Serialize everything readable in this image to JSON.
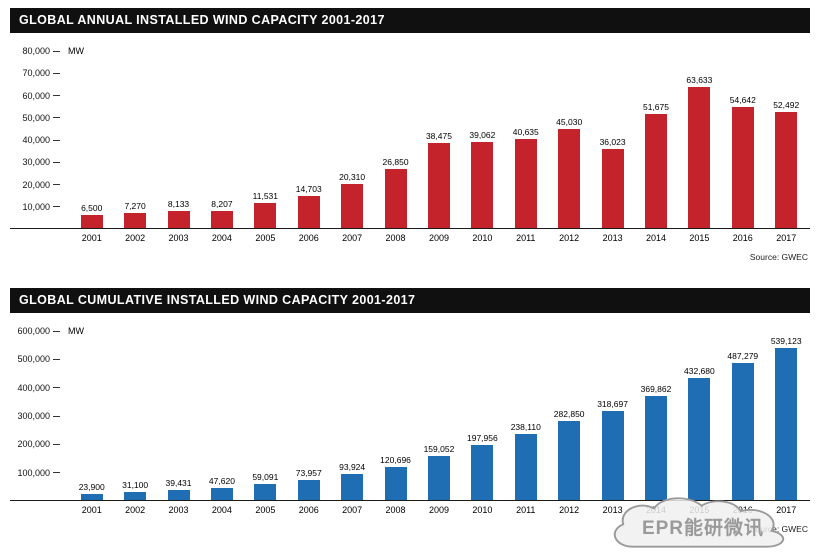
{
  "chart_data": [
    {
      "type": "bar",
      "title": "GLOBAL ANNUAL INSTALLED WIND CAPACITY 2001-2017",
      "ylabel": "MW",
      "source": "Source: GWEC",
      "bar_color": "#c4232b",
      "ylim": [
        0,
        80000
      ],
      "legend": "none",
      "grid": false,
      "yticks": [
        {
          "label": "10,000",
          "value": 10000
        },
        {
          "label": "20,000",
          "value": 20000
        },
        {
          "label": "30,000",
          "value": 30000
        },
        {
          "label": "40,000",
          "value": 40000
        },
        {
          "label": "50,000",
          "value": 50000
        },
        {
          "label": "60,000",
          "value": 60000
        },
        {
          "label": "70,000",
          "value": 70000
        },
        {
          "label": "80,000",
          "value": 80000
        }
      ],
      "categories": [
        "2001",
        "2002",
        "2003",
        "2004",
        "2005",
        "2006",
        "2007",
        "2008",
        "2009",
        "2010",
        "2011",
        "2012",
        "2013",
        "2014",
        "2015",
        "2016",
        "2017"
      ],
      "values": [
        6500,
        7270,
        8133,
        8207,
        11531,
        14703,
        20310,
        26850,
        38475,
        39062,
        40635,
        45030,
        36023,
        51675,
        63633,
        54642,
        52492
      ],
      "labels": [
        "6,500",
        "7,270",
        "8,133",
        "8,207",
        "11,531",
        "14,703",
        "20,310",
        "26,850",
        "38,475",
        "39,062",
        "40,635",
        "45,030",
        "36,023",
        "51,675",
        "63,633",
        "54,642",
        "52,492"
      ]
    },
    {
      "type": "bar",
      "title": "GLOBAL CUMULATIVE INSTALLED WIND CAPACITY 2001-2017",
      "ylabel": "MW",
      "source": "Source: GWEC",
      "bar_color": "#1f6eb4",
      "ylim": [
        0,
        600000
      ],
      "legend": "none",
      "grid": false,
      "yticks": [
        {
          "label": "100,000",
          "value": 100000
        },
        {
          "label": "200,000",
          "value": 200000
        },
        {
          "label": "300,000",
          "value": 300000
        },
        {
          "label": "400,000",
          "value": 400000
        },
        {
          "label": "500,000",
          "value": 500000
        },
        {
          "label": "600,000",
          "value": 600000
        }
      ],
      "categories": [
        "2001",
        "2002",
        "2003",
        "2004",
        "2005",
        "2006",
        "2007",
        "2008",
        "2009",
        "2010",
        "2011",
        "2012",
        "2013",
        "2014",
        "2015",
        "2016",
        "2017"
      ],
      "values": [
        23900,
        31100,
        39431,
        47620,
        59091,
        73957,
        93924,
        120696,
        159052,
        197956,
        238110,
        282850,
        318697,
        369862,
        432680,
        487279,
        539123
      ],
      "labels": [
        "23,900",
        "31,100",
        "39,431",
        "47,620",
        "59,091",
        "73,957",
        "93,924",
        "120,696",
        "159,052",
        "197,956",
        "238,110",
        "282,850",
        "318,697",
        "369,862",
        "432,680",
        "487,279",
        "539,123"
      ]
    }
  ],
  "watermark": {
    "text": "EPR能研微讯"
  }
}
